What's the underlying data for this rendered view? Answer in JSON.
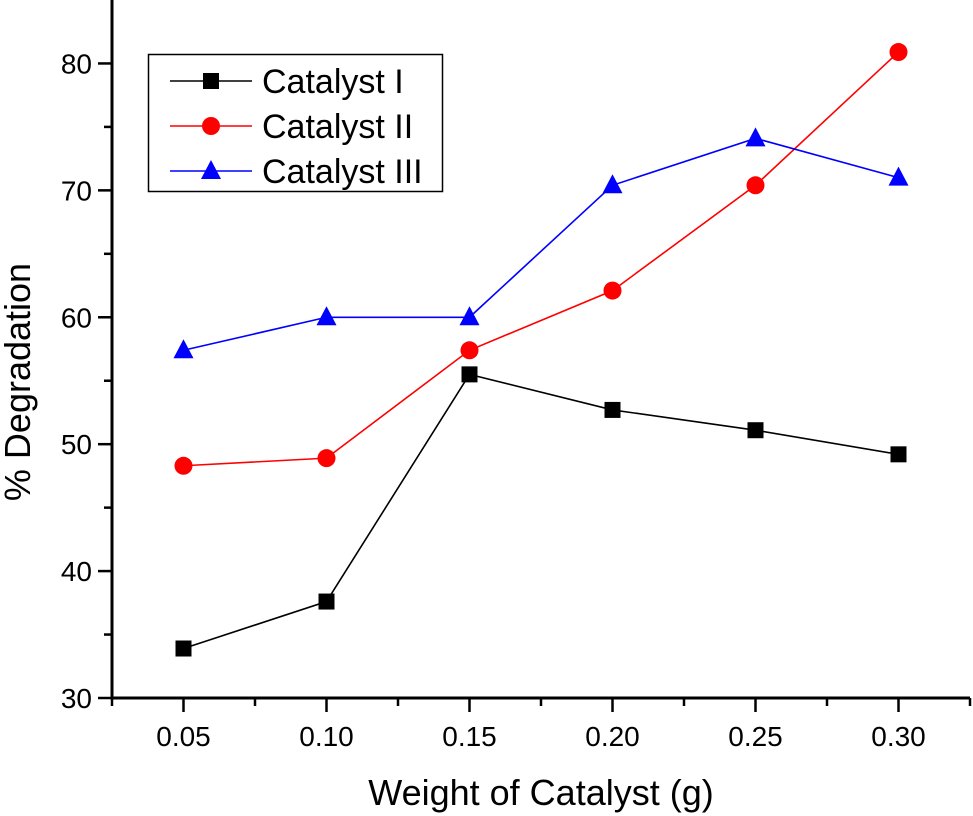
{
  "chart_data": {
    "type": "line",
    "title": "",
    "xlabel": "Weight of Catalyst (g)",
    "ylabel": "% Degradation",
    "xlim": [
      0.025,
      0.325
    ],
    "ylim": [
      30,
      85
    ],
    "x": [
      0.05,
      0.1,
      0.15,
      0.2,
      0.25,
      0.3
    ],
    "x_tick_labels": [
      "0.05",
      "0.10",
      "0.15",
      "0.20",
      "0.25",
      "0.30"
    ],
    "y_ticks": [
      30,
      40,
      50,
      60,
      70,
      80
    ],
    "y_tick_labels": [
      "30",
      "40",
      "50",
      "60",
      "70",
      "80"
    ],
    "grid": false,
    "legend_position": "top-left",
    "series": [
      {
        "name": "Catalyst I",
        "color": "#000000",
        "marker": "square",
        "values": [
          33.9,
          37.6,
          55.5,
          52.7,
          51.1,
          49.2
        ]
      },
      {
        "name": "Catalyst II",
        "color": "#ff0000",
        "marker": "circle",
        "values": [
          48.3,
          48.9,
          57.4,
          62.1,
          70.4,
          80.9
        ]
      },
      {
        "name": "Catalyst III",
        "color": "#0000ff",
        "marker": "triangle",
        "values": [
          57.4,
          60.0,
          60.0,
          70.4,
          74.1,
          71.0
        ]
      }
    ]
  }
}
